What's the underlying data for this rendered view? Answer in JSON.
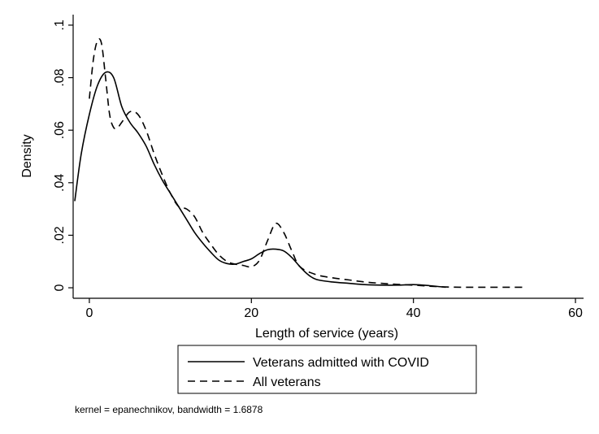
{
  "chart_data": {
    "type": "line",
    "title": "",
    "xlabel": "Length of service (years)",
    "ylabel": "Density",
    "xlim": [
      -2,
      61
    ],
    "ylim": [
      -0.004,
      0.104
    ],
    "xticks": [
      0,
      20,
      40,
      60
    ],
    "xtick_labels": [
      "0",
      "20",
      "40",
      "60"
    ],
    "yticks": [
      0,
      0.02,
      0.04,
      0.06,
      0.08,
      0.1
    ],
    "ytick_labels": [
      "0",
      ".02",
      ".04",
      ".06",
      ".08",
      ".1"
    ],
    "grid": false,
    "legend_position": "bottom",
    "note": "kernel = epanechnikov, bandwidth = 1.6878",
    "series": [
      {
        "name": "Veterans admitted with COVID",
        "style": "solid",
        "color": "#000000",
        "x": [
          -1.8,
          -1,
          0,
          1,
          2,
          3,
          4,
          5,
          6,
          7,
          8,
          9,
          10,
          11,
          12,
          13,
          14,
          15,
          16,
          17,
          18,
          19,
          20,
          21,
          22,
          23,
          24,
          25,
          26,
          27,
          28,
          30,
          32,
          34,
          36,
          38,
          40,
          42,
          44
        ],
        "y": [
          0.033,
          0.051,
          0.066,
          0.077,
          0.082,
          0.08,
          0.069,
          0.063,
          0.059,
          0.054,
          0.047,
          0.041,
          0.036,
          0.031,
          0.026,
          0.021,
          0.017,
          0.0135,
          0.0105,
          0.0092,
          0.009,
          0.01,
          0.011,
          0.013,
          0.0145,
          0.0147,
          0.014,
          0.0115,
          0.008,
          0.005,
          0.0032,
          0.0022,
          0.0017,
          0.0012,
          0.001,
          0.001,
          0.0012,
          0.0008,
          0.0002
        ]
      },
      {
        "name": "All veterans",
        "style": "dashed",
        "color": "#000000",
        "x": [
          0,
          0.5,
          1,
          1.5,
          2,
          2.5,
          3,
          3.5,
          4,
          5,
          6,
          7,
          8,
          9,
          10,
          11,
          12,
          13,
          14,
          15,
          16,
          17,
          18,
          19,
          20,
          21,
          22,
          23,
          24,
          25,
          26,
          28,
          30,
          32,
          34,
          36,
          38,
          40,
          42,
          44,
          46,
          48,
          50,
          52,
          54
        ],
        "y": [
          0.072,
          0.087,
          0.094,
          0.093,
          0.08,
          0.066,
          0.061,
          0.061,
          0.063,
          0.067,
          0.066,
          0.06,
          0.051,
          0.043,
          0.036,
          0.031,
          0.03,
          0.027,
          0.021,
          0.0165,
          0.0125,
          0.01,
          0.009,
          0.0085,
          0.008,
          0.0105,
          0.018,
          0.0245,
          0.021,
          0.014,
          0.008,
          0.005,
          0.0038,
          0.003,
          0.0022,
          0.0017,
          0.0013,
          0.001,
          0.0006,
          0.0003,
          0.0002,
          0.0002,
          0.0002,
          0.0002,
          0.0002
        ]
      }
    ]
  }
}
